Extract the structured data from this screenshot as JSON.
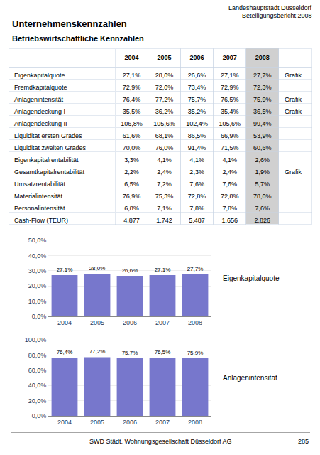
{
  "chart_data": [
    {
      "type": "table",
      "title": "Unternehmenskennzahlen",
      "subtitle": "Betriebswirtschaftliche Kennzahlen",
      "categories": [
        "Eigenkapitalquote",
        "Fremdkapitalquote",
        "Anlagenintensität",
        "Anlagendeckung I",
        "Anlagendeckung II",
        "Liquidität ersten Grades",
        "Liquidität zweiten Grades",
        "Eigenkapitalrentabilität",
        "Gesamtkapitalrentabilität",
        "Umsatzrentabilität",
        "Materialintensität",
        "Personalintensität",
        "Cash-Flow (TEUR)"
      ],
      "series": [
        {
          "name": "2004",
          "values": [
            27.1,
            72.9,
            76.4,
            35.5,
            106.8,
            61.6,
            70.0,
            3.3,
            2.2,
            6.5,
            76.9,
            6.8,
            4877
          ],
          "value_labels": [
            "27,1%",
            "72,9%",
            "76,4%",
            "35,5%",
            "106,8%",
            "61,6%",
            "70,0%",
            "3,3%",
            "2,2%",
            "6,5%",
            "76,9%",
            "6,8%",
            "4.877"
          ]
        },
        {
          "name": "2005",
          "values": [
            28.0,
            72.0,
            77.2,
            36.2,
            105.6,
            68.1,
            76.0,
            4.1,
            2.4,
            7.2,
            75.3,
            7.1,
            1742
          ],
          "value_labels": [
            "28,0%",
            "72,0%",
            "77,2%",
            "36,2%",
            "105,6%",
            "68,1%",
            "76,0%",
            "4,1%",
            "2,4%",
            "7,2%",
            "75,3%",
            "7,1%",
            "1.742"
          ]
        },
        {
          "name": "2006",
          "values": [
            26.6,
            73.4,
            75.7,
            35.2,
            102.4,
            86.5,
            91.4,
            4.1,
            2.3,
            7.6,
            72.8,
            7.8,
            5487
          ],
          "value_labels": [
            "26,6%",
            "73,4%",
            "75,7%",
            "35,2%",
            "102,4%",
            "86,5%",
            "91,4%",
            "4,1%",
            "2,3%",
            "7,6%",
            "72,8%",
            "7,8%",
            "5.487"
          ]
        },
        {
          "name": "2007",
          "values": [
            27.1,
            72.9,
            76.5,
            35.4,
            105.6,
            66.9,
            71.5,
            4.1,
            2.4,
            7.6,
            72.8,
            7.8,
            1656
          ],
          "value_labels": [
            "27,1%",
            "72,9%",
            "76,5%",
            "35,4%",
            "105,6%",
            "66,9%",
            "71,5%",
            "4,1%",
            "2,4%",
            "7,6%",
            "72,8%",
            "7,8%",
            "1.656"
          ]
        },
        {
          "name": "2008",
          "color": "#D0D0D0",
          "values": [
            27.7,
            72.3,
            75.9,
            36.5,
            99.4,
            53.9,
            60.6,
            2.6,
            1.9,
            5.7,
            78.0,
            7.6,
            2826
          ],
          "value_labels": [
            "27,7%",
            "72,3%",
            "75,9%",
            "36,5%",
            "99,4%",
            "53,9%",
            "60,6%",
            "2,6%",
            "1,9%",
            "5,7%",
            "78,0%",
            "7,6%",
            "2.826"
          ]
        }
      ],
      "annotations": [
        {
          "text": "Landeshauptstadt Düsseldorf"
        },
        {
          "text": "Beteiligungsbericht 2008"
        },
        {
          "text": "SWD Städt. Wohnungsgesellschaft Düsseldorf AG"
        },
        {
          "text": "285"
        },
        {
          "text": "Grafik",
          "category": "Eigenkapitalquote"
        },
        {
          "text": "Grafik",
          "category": "Anlagenintensität"
        },
        {
          "text": "Grafik",
          "category": "Anlagendeckung I"
        },
        {
          "text": "Grafik",
          "category": "Gesamtkapitalrentabilität"
        }
      ]
    },
    {
      "type": "bar",
      "title": "Eigenkapitalquote",
      "categories": [
        "2004",
        "2005",
        "2006",
        "2007",
        "2008"
      ],
      "values": [
        27.1,
        28.0,
        26.6,
        27.1,
        27.7
      ],
      "value_labels": [
        "27,1%",
        "28,0%",
        "26,6%",
        "27,1%",
        "27,7%"
      ],
      "data_labels": true,
      "color": "#7777CC",
      "ylim": [
        0,
        50
      ],
      "yticks": [
        {
          "value": 0,
          "label": "0,0%"
        },
        {
          "value": 10,
          "label": "10,0%"
        },
        {
          "value": 20,
          "label": "20,0%"
        },
        {
          "value": 30,
          "label": "30,0%"
        },
        {
          "value": 40,
          "label": "40,0%"
        },
        {
          "value": 50,
          "label": "50,0%"
        }
      ],
      "grid": true
    },
    {
      "type": "bar",
      "title": "Anlagenintensität",
      "categories": [
        "2004",
        "2005",
        "2006",
        "2007",
        "2008"
      ],
      "values": [
        76.4,
        77.2,
        75.7,
        76.5,
        75.9
      ],
      "value_labels": [
        "76,4%",
        "77,2%",
        "75,7%",
        "76,5%",
        "75,9%"
      ],
      "data_labels": true,
      "color": "#7777CC",
      "ylim": [
        0,
        100
      ],
      "yticks": [
        {
          "value": 0,
          "label": "0,0%"
        },
        {
          "value": 20,
          "label": "20,0%"
        },
        {
          "value": 40,
          "label": "40,0%"
        },
        {
          "value": 60,
          "label": "60,0%"
        },
        {
          "value": 80,
          "label": "80,0%"
        },
        {
          "value": 100,
          "label": "100,0%"
        }
      ],
      "grid": true
    }
  ]
}
